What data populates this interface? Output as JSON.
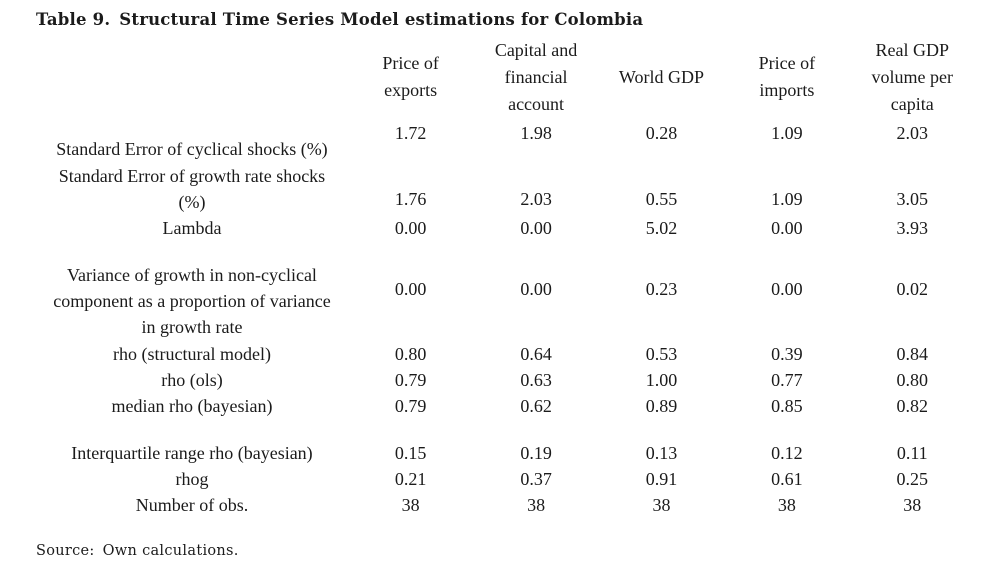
{
  "title": {
    "number": "Table 9.",
    "text": "Structural Time Series Model estimations for Colombia"
  },
  "table": {
    "columns": [
      "Price of exports",
      "Capital and financial account",
      "World GDP",
      "Price of imports",
      "Real GDP volume per capita"
    ],
    "rows": [
      {
        "label": "Standard Error of cyclical shocks (%)",
        "values": [
          "1.72",
          "1.98",
          "0.28",
          "1.09",
          "2.03"
        ]
      },
      {
        "label": "Standard Error of growth rate shocks (%)",
        "values": [
          "1.76",
          "2.03",
          "0.55",
          "1.09",
          "3.05"
        ]
      },
      {
        "label": "Lambda",
        "values": [
          "0.00",
          "0.00",
          "5.02",
          "0.00",
          "3.93"
        ]
      },
      {
        "label": "Variance of growth in non-cyclical component as a proportion of variance in growth rate",
        "values": [
          "0.00",
          "0.00",
          "0.23",
          "0.00",
          "0.02"
        ]
      },
      {
        "label": "rho (structural model)",
        "values": [
          "0.80",
          "0.64",
          "0.53",
          "0.39",
          "0.84"
        ]
      },
      {
        "label": "rho (ols)",
        "values": [
          "0.79",
          "0.63",
          "1.00",
          "0.77",
          "0.80"
        ]
      },
      {
        "label": "median rho (bayesian)",
        "values": [
          "0.79",
          "0.62",
          "0.89",
          "0.85",
          "0.82"
        ]
      },
      {
        "label": "Interquartile range rho (bayesian)",
        "values": [
          "0.15",
          "0.19",
          "0.13",
          "0.12",
          "0.11"
        ]
      },
      {
        "label": "rhog",
        "values": [
          "0.21",
          "0.37",
          "0.91",
          "0.61",
          "0.25"
        ]
      },
      {
        "label": "Number of obs.",
        "values": [
          "38",
          "38",
          "38",
          "38",
          "38"
        ]
      }
    ]
  },
  "source": {
    "label": "Source:",
    "text": "Own calculations."
  },
  "chart_data": {
    "type": "table",
    "title": "Table 9. Structural Time Series Model estimations for Colombia",
    "columns": [
      "Price of exports",
      "Capital and financial account",
      "World GDP",
      "Price of imports",
      "Real GDP volume per capita"
    ],
    "rows": [
      {
        "label": "Standard Error of cyclical shocks (%)",
        "values": [
          1.72,
          1.98,
          0.28,
          1.09,
          2.03
        ]
      },
      {
        "label": "Standard Error of growth rate shocks (%)",
        "values": [
          1.76,
          2.03,
          0.55,
          1.09,
          3.05
        ]
      },
      {
        "label": "Lambda",
        "values": [
          0.0,
          0.0,
          5.02,
          0.0,
          3.93
        ]
      },
      {
        "label": "Variance of growth in non-cyclical component as a proportion of variance in growth rate",
        "values": [
          0.0,
          0.0,
          0.23,
          0.0,
          0.02
        ]
      },
      {
        "label": "rho (structural model)",
        "values": [
          0.8,
          0.64,
          0.53,
          0.39,
          0.84
        ]
      },
      {
        "label": "rho (ols)",
        "values": [
          0.79,
          0.63,
          1.0,
          0.77,
          0.8
        ]
      },
      {
        "label": "median rho (bayesian)",
        "values": [
          0.79,
          0.62,
          0.89,
          0.85,
          0.82
        ]
      },
      {
        "label": "Interquartile range rho (bayesian)",
        "values": [
          0.15,
          0.19,
          0.13,
          0.12,
          0.11
        ]
      },
      {
        "label": "rhog",
        "values": [
          0.21,
          0.37,
          0.91,
          0.61,
          0.25
        ]
      },
      {
        "label": "Number of obs.",
        "values": [
          38,
          38,
          38,
          38,
          38
        ]
      }
    ],
    "source": "Source: Own calculations."
  }
}
